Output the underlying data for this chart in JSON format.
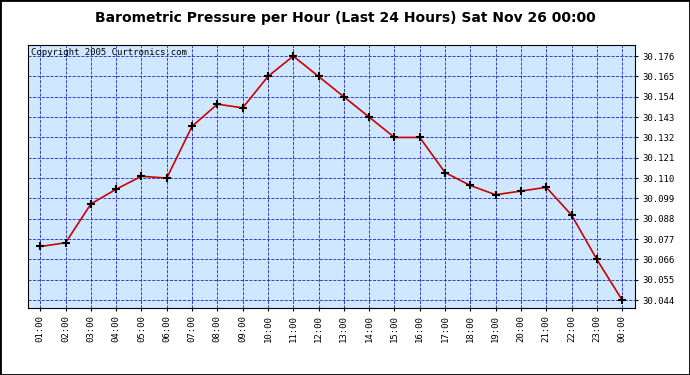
{
  "title": "Barometric Pressure per Hour (Last 24 Hours) Sat Nov 26 00:00",
  "copyright": "Copyright 2005 Curtronics.com",
  "hours": [
    "01:00",
    "02:00",
    "03:00",
    "04:00",
    "05:00",
    "06:00",
    "07:00",
    "08:00",
    "09:00",
    "10:00",
    "11:00",
    "12:00",
    "13:00",
    "14:00",
    "15:00",
    "16:00",
    "17:00",
    "18:00",
    "19:00",
    "20:00",
    "21:00",
    "22:00",
    "23:00",
    "00:00"
  ],
  "values": [
    30.073,
    30.075,
    30.096,
    30.104,
    30.111,
    30.11,
    30.138,
    30.15,
    30.148,
    30.165,
    30.176,
    30.165,
    30.154,
    30.143,
    30.132,
    30.132,
    30.113,
    30.106,
    30.101,
    30.103,
    30.105,
    30.09,
    30.066,
    30.044
  ],
  "ylim_min": 30.04,
  "ylim_max": 30.182,
  "yticks": [
    30.044,
    30.055,
    30.066,
    30.077,
    30.088,
    30.099,
    30.11,
    30.121,
    30.132,
    30.143,
    30.154,
    30.165,
    30.176
  ],
  "line_color": "#cc0000",
  "marker_color": "#000000",
  "bg_color": "#d0e8ff",
  "outer_bg": "#ffffff",
  "border_color": "#000000",
  "grid_color": "#2222cc",
  "title_fontsize": 10,
  "copyright_fontsize": 6.5
}
